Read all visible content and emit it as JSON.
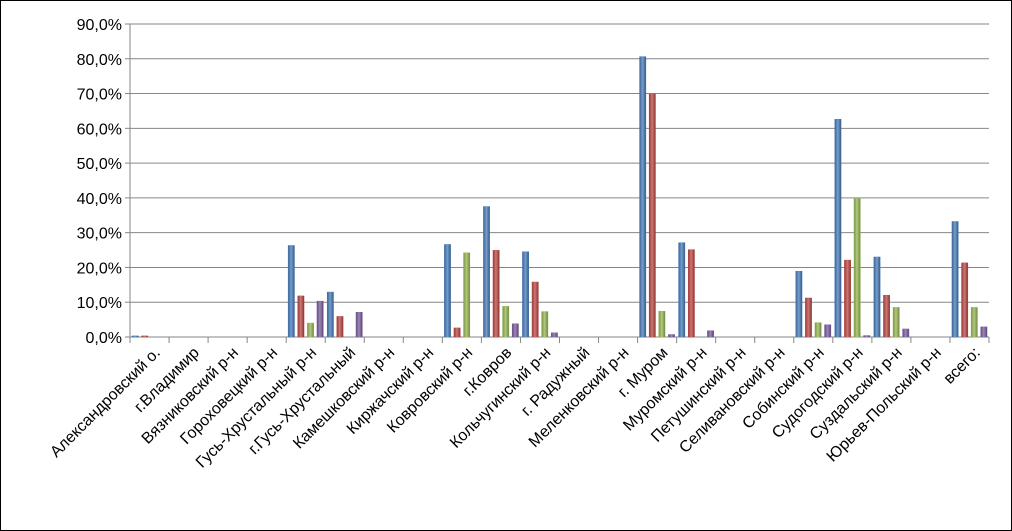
{
  "chart_data": {
    "type": "bar",
    "title": "",
    "xlabel": "",
    "ylabel": "",
    "ylim": [
      0,
      90
    ],
    "y_ticks": [
      "0,0%",
      "10,0%",
      "20,0%",
      "30,0%",
      "40,0%",
      "50,0%",
      "60,0%",
      "70,0%",
      "80,0%",
      "90,0%"
    ],
    "y_tick_values": [
      0,
      10,
      20,
      30,
      40,
      50,
      60,
      70,
      80,
      90
    ],
    "grid": true,
    "legend": "none",
    "categories": [
      "Александровский о.",
      "г.Владимир",
      "Вязниковский р-н",
      "Гороховецкий р-н",
      "Гусь-Хрустальный р-н",
      "г.Гусь-Хрустальный",
      "Камешковский р-н",
      "Киржачский р-н",
      "Ковровский р-н",
      "г.Ковров",
      "Кольчугинский р-н",
      "г. Радужный",
      "Меленковский р-н",
      "г. Муром",
      "Муромский р-н",
      "Петушинский р-н",
      "Селивановский р-н",
      "Собинский р-н",
      "Судогодский р-н",
      "Суздальский р-н",
      "Юрьев-Польский р-н",
      "всего:"
    ],
    "series": [
      {
        "color": "#4a7ebb",
        "values": [
          0.3,
          0,
          0,
          0,
          26.3,
          12.9,
          0,
          0,
          26.6,
          37.5,
          24.5,
          0,
          0,
          80.6,
          27.1,
          0,
          0,
          18.9,
          62.6,
          23.0,
          0,
          33.2
        ]
      },
      {
        "color": "#be4b48",
        "values": [
          0.3,
          0,
          0,
          0,
          11.8,
          5.9,
          0,
          0,
          2.6,
          24.9,
          15.8,
          0,
          0,
          69.9,
          25.1,
          0,
          0,
          11.2,
          22.1,
          12.0,
          0,
          21.3
        ]
      },
      {
        "color": "#98b954",
        "values": [
          0,
          0,
          0,
          0,
          4.0,
          0,
          0,
          0,
          24.2,
          8.8,
          7.3,
          0,
          0,
          7.4,
          0,
          0,
          0,
          4.1,
          39.8,
          8.5,
          0,
          8.5
        ]
      },
      {
        "color": "#7d60a0",
        "values": [
          0,
          0,
          0,
          0,
          10.3,
          7.1,
          0,
          0,
          0,
          3.8,
          1.2,
          0,
          0,
          0.7,
          1.8,
          0,
          0,
          3.5,
          0.4,
          2.3,
          0,
          2.9
        ]
      }
    ]
  }
}
